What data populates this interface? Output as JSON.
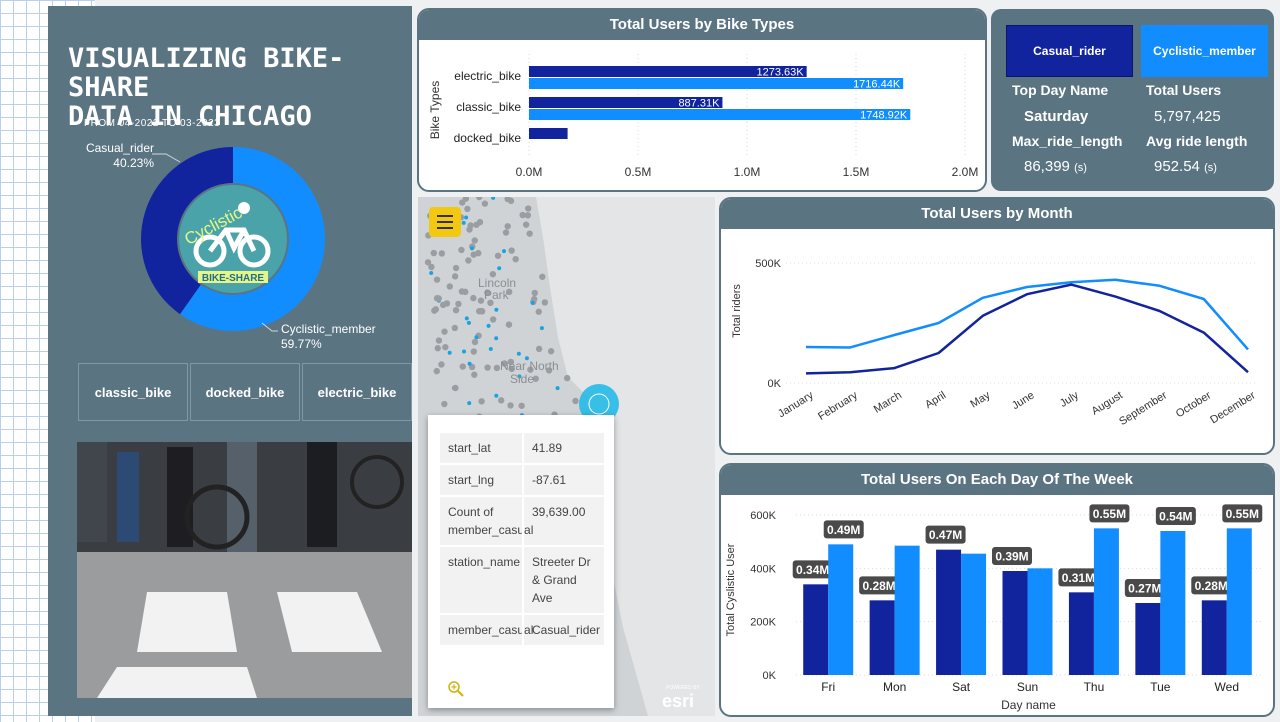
{
  "header": {
    "title_line1": "VISUALIZING BIKE-SHARE",
    "title_line2": "DATA IN CHICAGO",
    "date_range": "FROM 04-2022 TO 03-2023"
  },
  "logo": {
    "word1": "Cyclistic",
    "word2": "BIKE-SHARE"
  },
  "donut": {
    "casual_label": "Casual_rider",
    "casual_pct": "40.23%",
    "member_label": "Cyclistic_member",
    "member_pct": "59.77%",
    "casual_value": 40.23,
    "member_value": 59.77,
    "casual_color": "#12239e",
    "member_color": "#118dff"
  },
  "slicers": [
    "classic_bike",
    "docked_bike",
    "electric_bike"
  ],
  "kpi": {
    "btn_casual": "Casual_rider",
    "btn_member": "Cyclistic_member",
    "top_day_label": "Top Day Name",
    "top_day_value": "Saturday",
    "total_users_label": "Total Users",
    "total_users_value": "5,797,425",
    "max_ride_label": "Max_ride_length",
    "max_ride_value": "86,399",
    "max_ride_unit": "(s)",
    "avg_ride_label": "Avg ride length",
    "avg_ride_value": "952.54",
    "avg_ride_unit": "(s)"
  },
  "map": {
    "labels": {
      "lincoln_1": "Lincoln",
      "lincoln_2": "Park",
      "near_north_1": "Near North",
      "near_north_2": "Side"
    },
    "esri_small": "POWERED BY",
    "esri": "esri",
    "tooltip": [
      {
        "key": "start_lat",
        "value": "41.89"
      },
      {
        "key": "start_lng",
        "value": "-87.61"
      },
      {
        "key": "Count of member_casual",
        "value": "39,639.00"
      },
      {
        "key": "station_name",
        "value": "Streeter Dr & Grand Ave"
      },
      {
        "key": "member_casual",
        "value": "Casual_rider"
      }
    ]
  },
  "colors": {
    "casual": "#12239e",
    "member": "#118dff",
    "panel": "#5a7482"
  },
  "chart_data": [
    {
      "type": "bar",
      "orientation": "horizontal",
      "title": "Total Users by Bike Types",
      "ylabel": "Bike Types",
      "categories": [
        "electric_bike",
        "classic_bike",
        "docked_bike"
      ],
      "series": [
        {
          "name": "Casual_rider",
          "values": [
            1273630,
            887310,
            177000
          ],
          "labels": [
            "1273.63K",
            "887.31K",
            ""
          ]
        },
        {
          "name": "Cyclistic_member",
          "values": [
            1716440,
            1748920,
            0
          ],
          "labels": [
            "1716.44K",
            "1748.92K",
            ""
          ]
        }
      ],
      "xticks": [
        "0.0M",
        "0.5M",
        "1.0M",
        "1.5M",
        "2.0M"
      ],
      "xlim": [
        0,
        2000000
      ]
    },
    {
      "type": "line",
      "title": "Total Users by Month",
      "ylabel": "Total riders",
      "categories": [
        "January",
        "February",
        "March",
        "April",
        "May",
        "June",
        "July",
        "August",
        "September",
        "October",
        "December"
      ],
      "series": [
        {
          "name": "Casual_rider",
          "values": [
            40000,
            45000,
            62000,
            125000,
            280000,
            370000,
            410000,
            360000,
            300000,
            210000,
            45000
          ]
        },
        {
          "name": "Cyclistic_member",
          "values": [
            150000,
            148000,
            200000,
            250000,
            355000,
            400000,
            420000,
            430000,
            405000,
            350000,
            140000
          ]
        }
      ],
      "yticks": [
        "0K",
        "500K"
      ],
      "ylim": [
        0,
        500000
      ]
    },
    {
      "type": "bar",
      "title": "Total Users On Each Day Of The Week",
      "xlabel": "Day name",
      "ylabel": "Total Cyslistic User",
      "categories": [
        "Fri",
        "Mon",
        "Sat",
        "Sun",
        "Thu",
        "Tue",
        "Wed"
      ],
      "series": [
        {
          "name": "Casual_rider",
          "values": [
            340000,
            280000,
            470000,
            390000,
            310000,
            270000,
            280000
          ],
          "labels": [
            "0.34M",
            "0.28M",
            "0.47M",
            "0.39M",
            "0.31M",
            "0.27M",
            "0.28M"
          ]
        },
        {
          "name": "Cyclistic_member",
          "values": [
            490000,
            485000,
            455000,
            400000,
            550000,
            540000,
            550000
          ],
          "labels": [
            "0.49M",
            "",
            "",
            "",
            "0.55M",
            "0.54M",
            "0.55M"
          ]
        }
      ],
      "yticks": [
        "0K",
        "200K",
        "400K",
        "600K"
      ],
      "ylim": [
        0,
        600000
      ]
    }
  ]
}
